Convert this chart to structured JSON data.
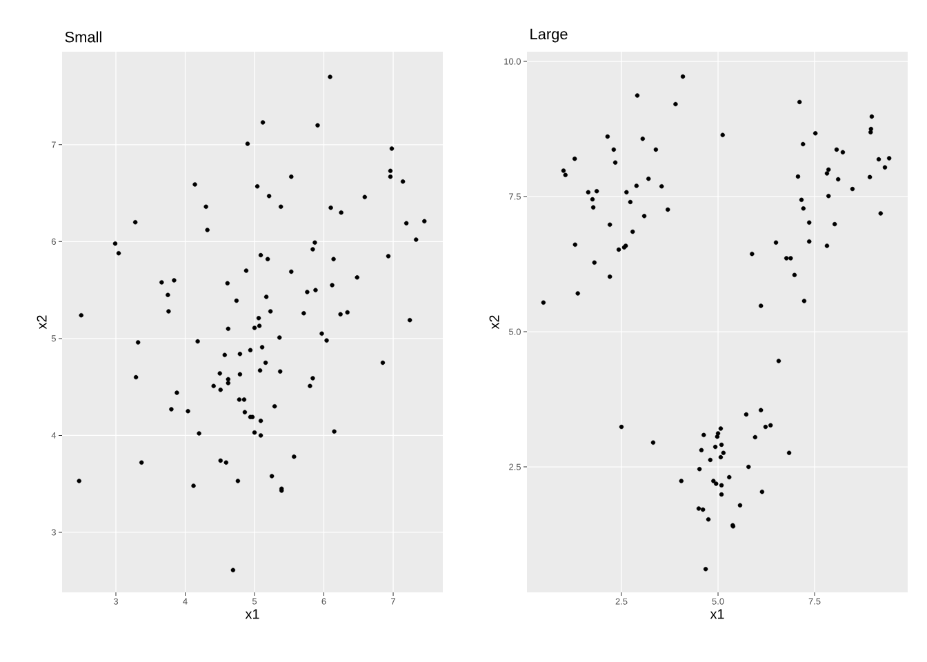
{
  "chart_data": [
    {
      "type": "scatter",
      "title": "Small",
      "xlabel": "x1",
      "ylabel": "x2",
      "color": "#000000",
      "marker": "circle",
      "grid": true,
      "xlim": [
        2.224,
        7.716
      ],
      "ylim": [
        2.38,
        7.96
      ],
      "xticks": [
        3,
        4,
        5,
        6,
        7
      ],
      "yticks": [
        3,
        4,
        5,
        6,
        7
      ],
      "x": [
        2.47,
        2.5,
        2.99,
        3.04,
        3.28,
        3.29,
        3.32,
        3.37,
        3.66,
        3.75,
        3.76,
        3.8,
        3.84,
        3.88,
        4.04,
        4.14,
        4.18,
        4.2,
        4.3,
        4.32,
        4.12,
        4.41,
        4.5,
        4.51,
        4.57,
        4.61,
        4.62,
        4.62,
        4.62,
        4.74,
        4.79,
        4.79,
        4.78,
        4.76,
        4.69,
        4.59,
        4.51,
        4.85,
        4.86,
        4.9,
        4.94,
        4.97,
        4.88,
        5.0,
        5.0,
        5.06,
        5.07,
        4.94,
        5.04,
        5.09,
        5.08,
        5.11,
        5.09,
        5.09,
        5.12,
        5.16,
        5.17,
        5.19,
        5.21,
        5.23,
        5.25,
        5.29,
        5.36,
        5.37,
        5.38,
        5.39,
        5.39,
        5.53,
        5.53,
        5.57,
        5.71,
        5.76,
        5.8,
        5.84,
        5.84,
        5.87,
        5.88,
        5.91,
        5.97,
        6.04,
        6.09,
        6.1,
        6.12,
        6.15,
        6.14,
        6.24,
        6.25,
        6.34,
        6.48,
        6.59,
        6.85,
        6.93,
        6.96,
        6.98,
        6.96,
        7.14,
        7.24,
        7.19,
        7.33,
        7.45
      ],
      "values": [
        3.53,
        5.24,
        5.98,
        5.88,
        6.2,
        4.6,
        4.96,
        3.72,
        5.58,
        5.45,
        5.28,
        4.27,
        5.6,
        4.44,
        4.25,
        6.59,
        4.97,
        4.02,
        6.36,
        6.12,
        3.48,
        4.51,
        4.64,
        4.47,
        4.83,
        5.57,
        4.54,
        4.58,
        5.1,
        5.39,
        4.63,
        4.84,
        4.37,
        3.53,
        2.61,
        3.72,
        3.74,
        4.37,
        4.24,
        7.01,
        4.19,
        4.19,
        5.7,
        4.03,
        5.11,
        5.21,
        5.13,
        4.88,
        6.57,
        5.86,
        4.67,
        4.91,
        4.15,
        4.0,
        7.23,
        4.75,
        5.43,
        5.82,
        6.47,
        5.28,
        3.58,
        4.3,
        5.01,
        4.66,
        6.36,
        3.45,
        3.43,
        5.69,
        6.67,
        3.78,
        5.26,
        5.48,
        4.51,
        4.59,
        5.92,
        5.99,
        5.5,
        7.2,
        5.05,
        4.98,
        7.7,
        6.35,
        5.55,
        4.04,
        5.82,
        5.25,
        6.3,
        5.27,
        5.63,
        6.46,
        4.75,
        5.85,
        6.67,
        6.96,
        6.73,
        6.62,
        5.19,
        6.19,
        6.02,
        6.21
      ]
    },
    {
      "type": "scatter",
      "title": "Large",
      "xlabel": "x1",
      "ylabel": "x2",
      "color": "#000000",
      "marker": "circle",
      "grid": true,
      "xlim": [
        0.054,
        9.91
      ],
      "ylim": [
        0.18,
        10.18
      ],
      "xticks": [
        2.5,
        {
          "value": 5,
          "label": "5.0"
        },
        7.5
      ],
      "yticks": [
        2.5,
        {
          "value": 5,
          "label": "5.0"
        },
        7.5,
        {
          "value": 10,
          "label": "10.0"
        }
      ],
      "x": [
        0.48,
        1.0,
        1.05,
        1.29,
        1.3,
        1.37,
        1.64,
        1.75,
        1.77,
        1.86,
        1.8,
        2.14,
        2.2,
        2.2,
        2.3,
        2.34,
        2.43,
        2.57,
        2.61,
        2.63,
        2.73,
        2.79,
        2.89,
        2.91,
        3.05,
        3.09,
        3.2,
        3.39,
        3.54,
        3.7,
        3.9,
        4.09,
        2.5,
        3.32,
        4.05,
        5.12,
        5.88,
        6.11,
        6.5,
        6.57,
        6.77,
        6.88,
        6.98,
        7.07,
        7.11,
        7.16,
        7.2,
        7.21,
        7.23,
        7.36,
        7.36,
        7.52,
        7.82,
        7.82,
        7.86,
        7.86,
        8.02,
        8.07,
        8.11,
        8.23,
        8.48,
        8.93,
        8.95,
        8.96,
        8.98,
        9.16,
        9.21,
        9.32,
        9.43,
        5.07,
        5.0,
        4.98,
        4.93,
        5.09,
        5.14,
        5.07,
        4.57,
        4.52,
        4.8,
        4.88,
        4.95,
        5.09,
        5.09,
        5.29,
        4.5,
        4.61,
        4.75,
        5.38,
        5.39,
        5.57,
        4.68,
        5.79,
        5.73,
        6.11,
        5.96,
        6.23,
        6.36,
        6.14,
        6.84,
        4.63
      ],
      "values": [
        5.54,
        7.98,
        7.9,
        8.2,
        6.61,
        5.71,
        7.58,
        7.45,
        7.3,
        7.6,
        6.28,
        8.61,
        6.98,
        6.02,
        8.37,
        8.13,
        6.52,
        6.56,
        6.59,
        7.58,
        7.4,
        6.85,
        7.7,
        9.37,
        8.57,
        7.14,
        7.83,
        8.37,
        7.69,
        7.26,
        9.21,
        9.72,
        3.24,
        2.95,
        2.24,
        8.64,
        6.44,
        5.48,
        6.65,
        4.46,
        6.36,
        6.36,
        6.05,
        7.87,
        9.25,
        7.44,
        8.47,
        7.28,
        5.57,
        7.02,
        6.67,
        8.67,
        6.59,
        7.93,
        8.0,
        7.51,
        6.99,
        8.37,
        7.82,
        8.32,
        7.64,
        7.86,
        8.69,
        8.75,
        8.98,
        8.19,
        7.19,
        8.04,
        8.21,
        3.21,
        3.12,
        3.06,
        2.87,
        2.91,
        2.76,
        2.68,
        2.81,
        2.46,
        2.63,
        2.24,
        2.19,
        2.16,
        1.99,
        2.31,
        1.73,
        1.71,
        1.53,
        1.42,
        1.4,
        1.79,
        0.61,
        2.5,
        3.47,
        3.55,
        3.05,
        3.24,
        3.27,
        2.04,
        2.76,
        3.09
      ]
    }
  ]
}
